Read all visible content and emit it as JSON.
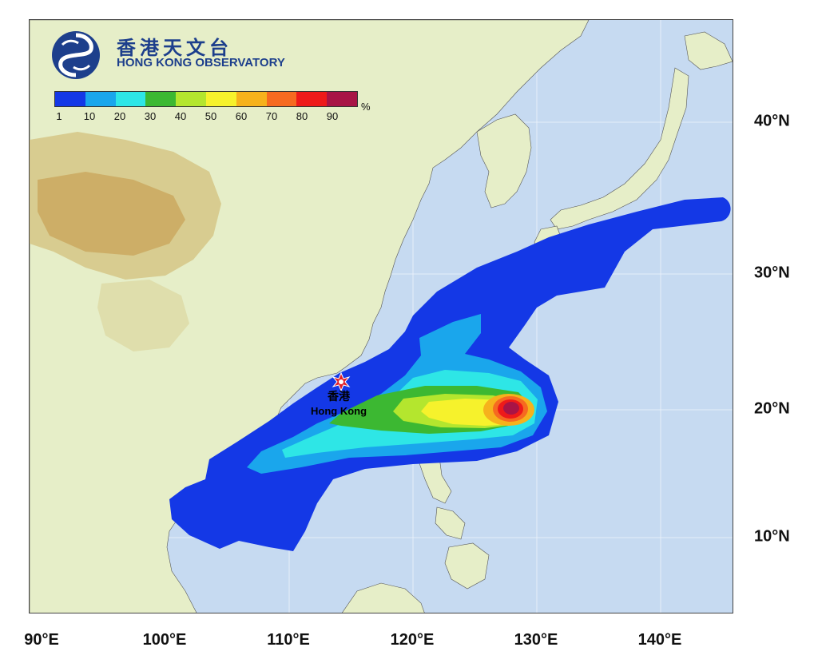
{
  "organization": {
    "name_zh": "香港天文台",
    "name_en": "HONG KONG OBSERVATORY",
    "logo_icon": "hko-logo-icon"
  },
  "legend": {
    "ticks": [
      "1",
      "10",
      "20",
      "30",
      "40",
      "50",
      "60",
      "70",
      "80",
      "90"
    ],
    "unit": "%",
    "colors": [
      "#1438e6",
      "#1aa6ec",
      "#2ee6e6",
      "#3cb832",
      "#b4e62e",
      "#f6f22c",
      "#f6b21c",
      "#f66a20",
      "#ee1a1a",
      "#a81446"
    ]
  },
  "axes": {
    "latitude_labels": [
      "40°N",
      "30°N",
      "20°N",
      "10°N"
    ],
    "longitude_labels": [
      "90°E",
      "100°E",
      "110°E",
      "120°E",
      "130°E",
      "140°E"
    ]
  },
  "marker": {
    "label_zh": "香港",
    "label_en": "Hong Kong",
    "icon": "star-marker-icon",
    "color": "#e0202a"
  },
  "map_colors": {
    "sea": "#c6daf1",
    "land": "#e6eec8",
    "highland": "#d6c88a",
    "mountain": "#c9a45a"
  }
}
